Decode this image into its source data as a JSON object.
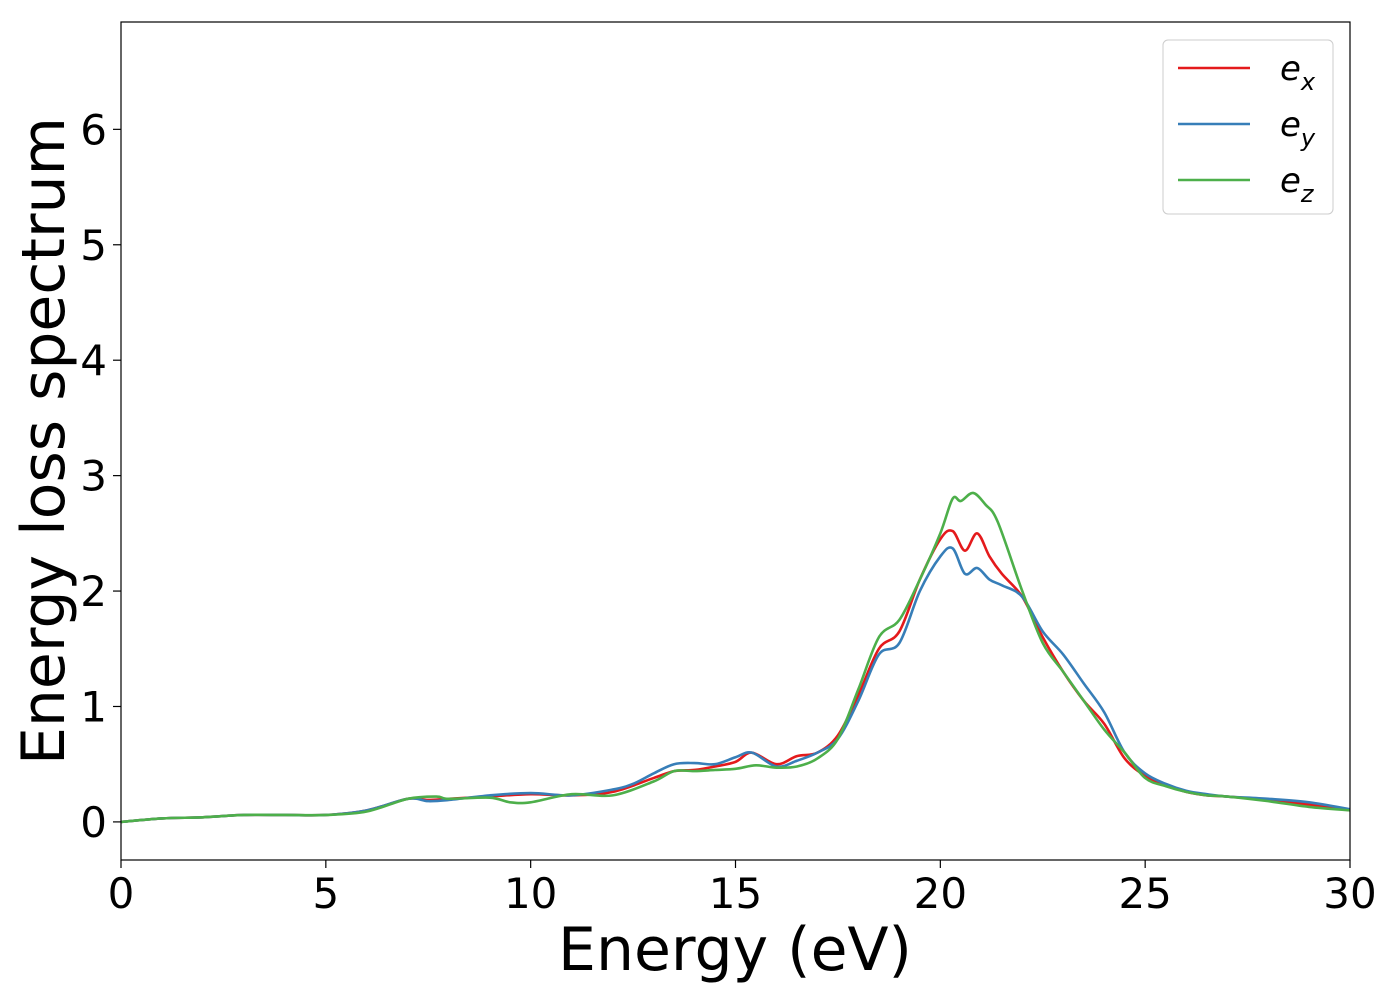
{
  "chart_data": {
    "type": "line",
    "title": "",
    "xlabel": "Energy (eV)",
    "ylabel": "Energy loss spectrum",
    "xlim": [
      0,
      30
    ],
    "ylim": [
      -0.33,
      6.93
    ],
    "xticks": [
      0,
      5,
      10,
      15,
      20,
      25,
      30
    ],
    "yticks": [
      0,
      1,
      2,
      3,
      4,
      5,
      6
    ],
    "grid": false,
    "legend_position": "top-right",
    "series": [
      {
        "name": "e_x",
        "legend_base": "e",
        "legend_sub": "x",
        "color": "#e41a1c",
        "x": [
          0,
          1,
          2,
          3,
          4,
          5,
          6,
          7,
          7.5,
          8,
          9,
          10,
          11,
          12,
          13,
          13.5,
          14,
          14.5,
          15,
          15.4,
          16,
          16.5,
          17,
          17.5,
          18,
          18.5,
          19,
          19.5,
          20,
          20.3,
          20.6,
          20.9,
          21.2,
          21.5,
          22,
          22.5,
          23,
          23.5,
          24,
          24.5,
          25,
          25.5,
          26,
          26.5,
          27,
          28,
          29,
          30
        ],
        "y": [
          0.0,
          0.03,
          0.04,
          0.06,
          0.06,
          0.06,
          0.1,
          0.2,
          0.19,
          0.2,
          0.22,
          0.24,
          0.23,
          0.26,
          0.38,
          0.44,
          0.45,
          0.48,
          0.52,
          0.6,
          0.5,
          0.57,
          0.6,
          0.75,
          1.1,
          1.5,
          1.65,
          2.1,
          2.45,
          2.52,
          2.35,
          2.5,
          2.3,
          2.15,
          1.95,
          1.6,
          1.3,
          1.05,
          0.85,
          0.55,
          0.4,
          0.32,
          0.26,
          0.23,
          0.22,
          0.19,
          0.15,
          0.1
        ]
      },
      {
        "name": "e_y",
        "legend_base": "e",
        "legend_sub": "y",
        "color": "#377eb8",
        "x": [
          0,
          1,
          2,
          3,
          4,
          5,
          6,
          7,
          7.5,
          8,
          9,
          10,
          11,
          12,
          12.5,
          13,
          13.5,
          14,
          14.5,
          15,
          15.4,
          16,
          16.5,
          17,
          17.5,
          18,
          18.5,
          19,
          19.5,
          20,
          20.3,
          20.6,
          20.9,
          21.2,
          21.5,
          22,
          22.5,
          23,
          23.5,
          24,
          24.5,
          25,
          25.5,
          26,
          26.5,
          27,
          28,
          29,
          30
        ],
        "y": [
          0.0,
          0.03,
          0.04,
          0.06,
          0.06,
          0.06,
          0.1,
          0.2,
          0.18,
          0.19,
          0.23,
          0.25,
          0.23,
          0.28,
          0.33,
          0.42,
          0.5,
          0.51,
          0.5,
          0.56,
          0.6,
          0.48,
          0.53,
          0.6,
          0.72,
          1.05,
          1.45,
          1.55,
          2.0,
          2.3,
          2.37,
          2.15,
          2.2,
          2.1,
          2.05,
          1.95,
          1.65,
          1.45,
          1.2,
          0.95,
          0.6,
          0.42,
          0.33,
          0.27,
          0.24,
          0.22,
          0.2,
          0.17,
          0.11
        ]
      },
      {
        "name": "e_z",
        "legend_base": "e",
        "legend_sub": "z",
        "color": "#4daf4a",
        "x": [
          0,
          1,
          2,
          3,
          4,
          5,
          6,
          7,
          7.7,
          8,
          9,
          9.5,
          10,
          11,
          12,
          13,
          13.5,
          14,
          14.5,
          15,
          15.5,
          16,
          16.5,
          17,
          17.5,
          18,
          18.5,
          19,
          19.5,
          20,
          20.3,
          20.5,
          20.8,
          21.1,
          21.4,
          22,
          22.5,
          23,
          23.5,
          24,
          24.5,
          25,
          25.5,
          26,
          26.5,
          27,
          28,
          29,
          30
        ],
        "y": [
          0.0,
          0.03,
          0.04,
          0.06,
          0.06,
          0.06,
          0.09,
          0.2,
          0.22,
          0.2,
          0.21,
          0.17,
          0.17,
          0.24,
          0.23,
          0.35,
          0.44,
          0.44,
          0.45,
          0.46,
          0.49,
          0.47,
          0.48,
          0.55,
          0.72,
          1.15,
          1.6,
          1.75,
          2.1,
          2.5,
          2.8,
          2.78,
          2.85,
          2.75,
          2.6,
          2.0,
          1.55,
          1.3,
          1.05,
          0.8,
          0.6,
          0.38,
          0.31,
          0.26,
          0.23,
          0.22,
          0.18,
          0.13,
          0.1
        ]
      }
    ]
  }
}
